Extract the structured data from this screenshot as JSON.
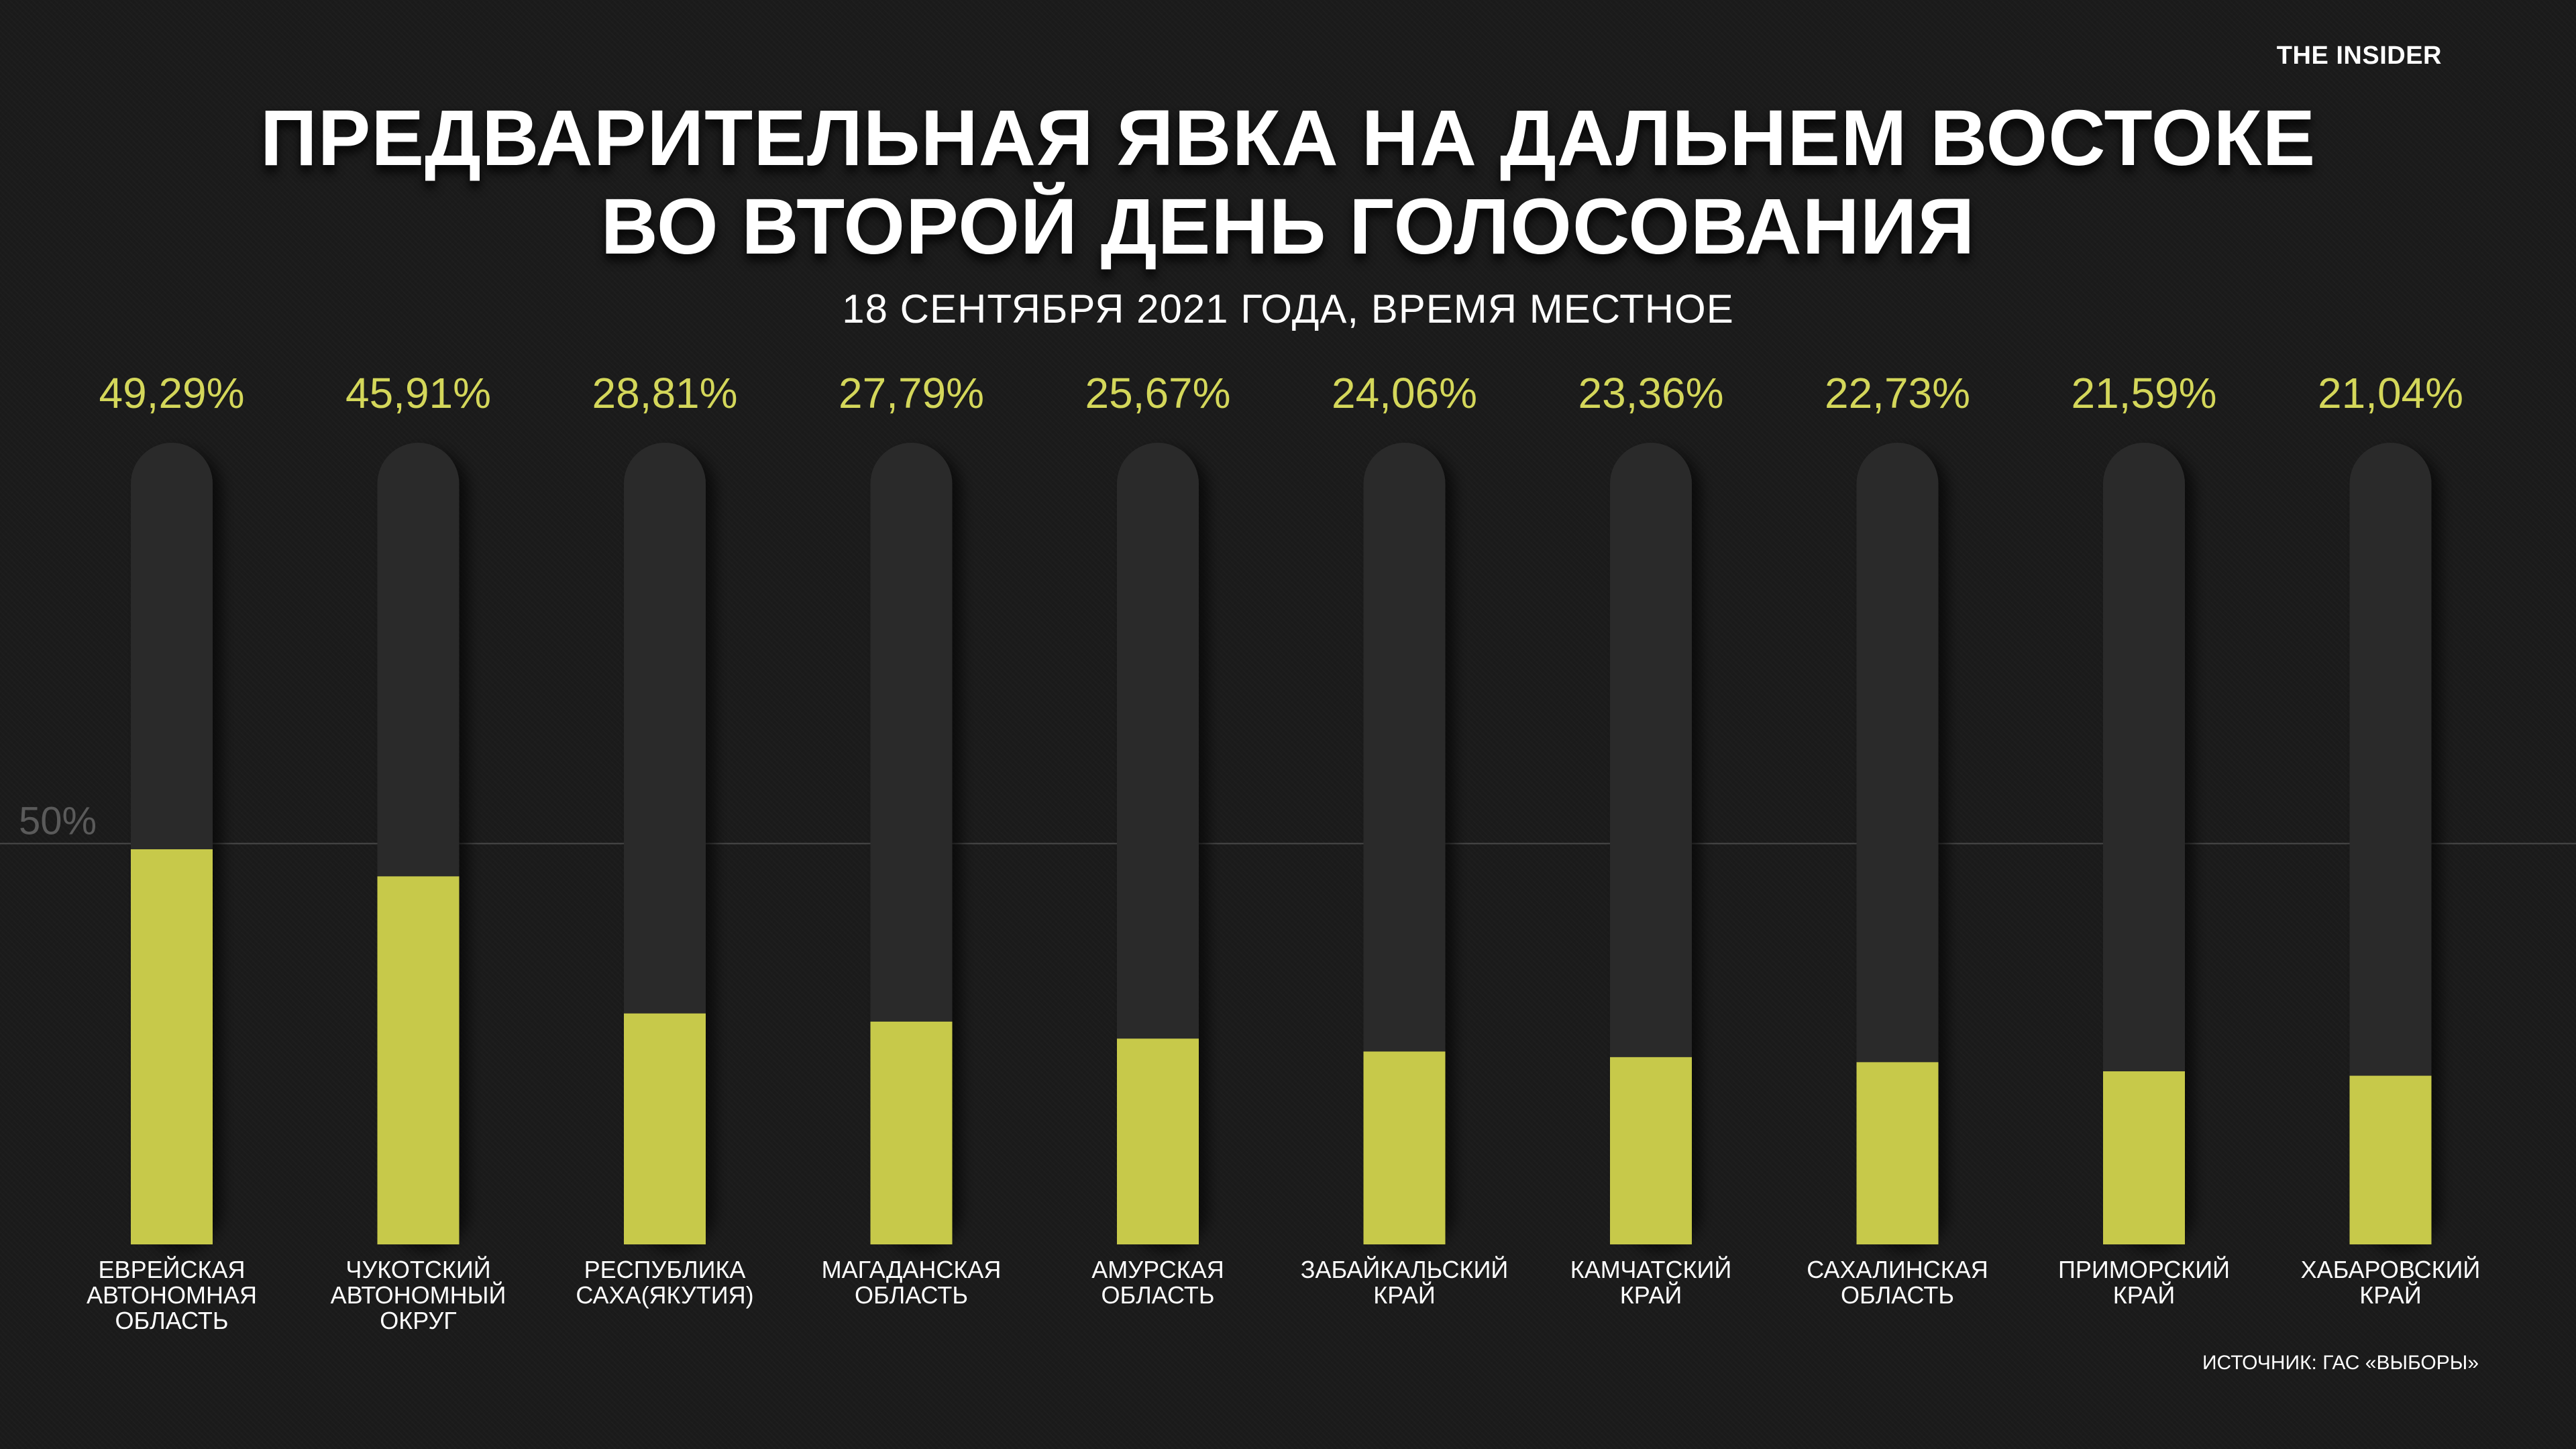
{
  "brand": "THE INSIDER",
  "title_lines": [
    "ПРЕДВАРИТЕЛЬНАЯ ЯВКА НА ДАЛЬНЕМ ВОСТОКЕ",
    "ВО ВТОРОЙ ДЕНЬ ГОЛОСОВАНИЯ"
  ],
  "subtitle": "18 СЕНТЯБРЯ 2021 ГОДА, ВРЕМЯ МЕСТНОЕ",
  "source": "ИСТОЧНИК: ГАС «ВЫБОРЫ»",
  "colors": {
    "background": "#1b1b1b",
    "bar": "#c7c94a",
    "track": "#2a2a2a",
    "value_text": "#d4d75a",
    "reference_text": "#5a5a5a",
    "reference_line": "#4a4a4a"
  },
  "chart_data": {
    "type": "bar",
    "categories": [
      [
        "ЕВРЕЙСКАЯ",
        "АВТОНОМНАЯ",
        "ОБЛАСТЬ"
      ],
      [
        "ЧУКОТСКИЙ",
        "АВТОНОМНЫЙ",
        "ОКРУГ"
      ],
      [
        "РЕСПУБЛИКА",
        "САХА(ЯКУТИЯ)"
      ],
      [
        "МАГАДАНСКАЯ",
        "ОБЛАСТЬ"
      ],
      [
        "АМУРСКАЯ",
        "ОБЛАСТЬ"
      ],
      [
        "ЗАБАЙКАЛЬСКИЙ",
        "КРАЙ"
      ],
      [
        "КАМЧАТСКИЙ",
        "КРАЙ"
      ],
      [
        "САХАЛИНСКАЯ",
        "ОБЛАСТЬ"
      ],
      [
        "ПРИМОРСКИЙ",
        "КРАЙ"
      ],
      [
        "ХАБАРОВСКИЙ",
        "КРАЙ"
      ]
    ],
    "values": [
      49.29,
      45.91,
      28.81,
      27.79,
      25.67,
      24.06,
      23.36,
      22.73,
      21.59,
      21.04
    ],
    "value_labels": [
      "49,29%",
      "45,91%",
      "28,81%",
      "27,79%",
      "25,67%",
      "24,06%",
      "23,36%",
      "22,73%",
      "21,59%",
      "21,04%"
    ],
    "reference_line": {
      "value": 50,
      "label": "50%"
    },
    "ylim": [
      0,
      100
    ],
    "grid": false,
    "legend": "none"
  }
}
